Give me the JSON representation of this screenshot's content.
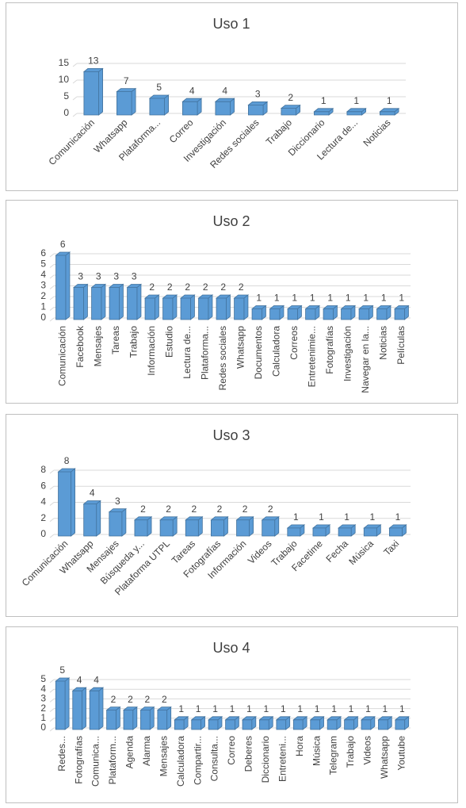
{
  "chart_data": [
    {
      "type": "bar",
      "title": "Uso 1",
      "color": "#5b9bd5",
      "categories": [
        "Comunicación",
        "Whatsapp",
        "Plataforma...",
        "Correo",
        "Investigación",
        "Redes sociales",
        "Trabajo",
        "Diccionario",
        "Lectura de...",
        "Noticias"
      ],
      "values": [
        13,
        7,
        5,
        4,
        4,
        3,
        2,
        1,
        1,
        1
      ],
      "ylim": [
        0,
        15
      ],
      "yticks": [
        0,
        5,
        10,
        15
      ],
      "grid": true
    },
    {
      "type": "bar",
      "title": "Uso 2",
      "color": "#5b9bd5",
      "categories": [
        "Comunicación",
        "Facebook",
        "Mensajes",
        "Tareas",
        "Trabajo",
        "Información",
        "Estudio",
        "Lectura de...",
        "Plataforma...",
        "Redes sociales",
        "Whatsapp",
        "Documentos",
        "Calculadora",
        "Correos",
        "Entretenimie...",
        "Fotografías",
        "Investigación",
        "Navegar en la...",
        "Noticias",
        "Películas"
      ],
      "values": [
        6,
        3,
        3,
        3,
        3,
        2,
        2,
        2,
        2,
        2,
        2,
        1,
        1,
        1,
        1,
        1,
        1,
        1,
        1,
        1
      ],
      "ylim": [
        0,
        6
      ],
      "yticks": [
        0,
        1,
        2,
        3,
        4,
        5,
        6
      ],
      "grid": true
    },
    {
      "type": "bar",
      "title": "Uso 3",
      "color": "#5b9bd5",
      "categories": [
        "Comunicación",
        "Whatsapp",
        "Mensajes",
        "Búsqueda y...",
        "Plataforma UTPL",
        "Tareas",
        "Fotografías",
        "Información",
        "Videos",
        "Trabajo",
        "Facetime",
        "Fecha",
        "Música",
        "Taxi"
      ],
      "values": [
        8,
        4,
        3,
        2,
        2,
        2,
        2,
        2,
        2,
        1,
        1,
        1,
        1,
        1
      ],
      "ylim": [
        0,
        8
      ],
      "yticks": [
        0,
        2,
        4,
        6,
        8
      ],
      "grid": true
    },
    {
      "type": "bar",
      "title": "Uso 4",
      "color": "#5b9bd5",
      "categories": [
        "Redes...",
        "Fotografías",
        "Comunica...",
        "Plataform...",
        "Agenda",
        "Alarma",
        "Mensajes",
        "Calculadora",
        "Compartir...",
        "Consulta...",
        "Correo",
        "Deberes",
        "Diccionario",
        "Entreteni...",
        "Hora",
        "Música",
        "Telegram",
        "Trabajo",
        "Videos",
        "Whatsapp",
        "Youtube"
      ],
      "values": [
        5,
        4,
        4,
        2,
        2,
        2,
        2,
        1,
        1,
        1,
        1,
        1,
        1,
        1,
        1,
        1,
        1,
        1,
        1,
        1,
        1
      ],
      "ylim": [
        0,
        5
      ],
      "yticks": [
        0,
        1,
        2,
        3,
        4,
        5
      ],
      "grid": true
    }
  ]
}
